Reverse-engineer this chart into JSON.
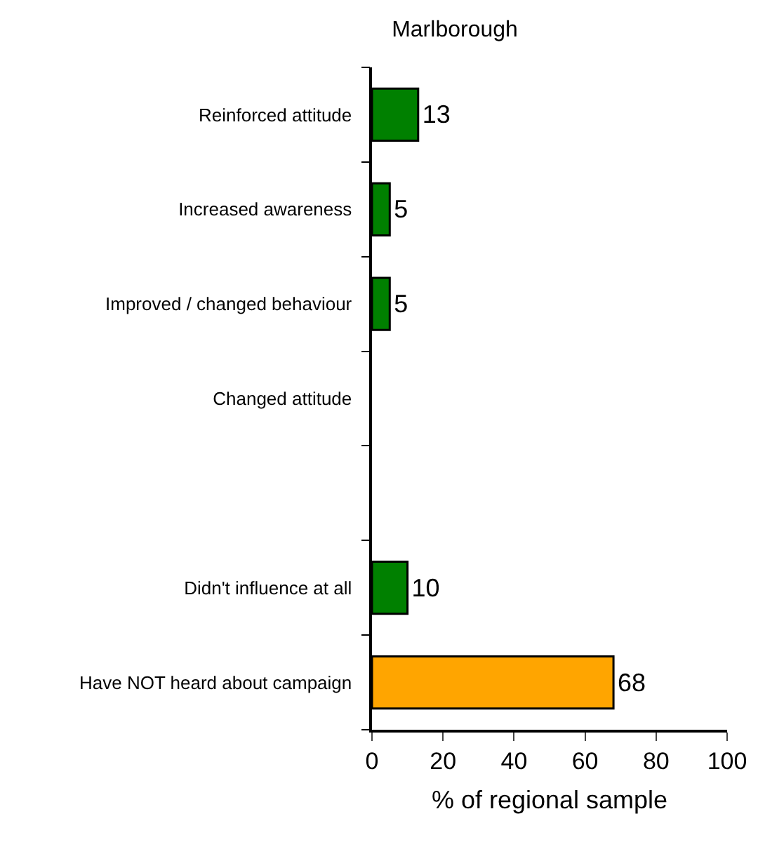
{
  "chart_data": {
    "type": "bar",
    "orientation": "horizontal",
    "title": "Marlborough",
    "xlabel": "% of regional sample",
    "categories": [
      "Reinforced attitude",
      "Increased awareness",
      "Improved / changed behaviour",
      "Changed attitude",
      null,
      "Didn't influence at all",
      "Have NOT heard about campaign"
    ],
    "values": [
      13,
      5,
      5,
      null,
      null,
      10,
      68
    ],
    "colors": [
      "#008000",
      "#008000",
      "#008000",
      "#008000",
      "#008000",
      "#008000",
      "#ffa500"
    ],
    "xlim": [
      0,
      100
    ],
    "xticks": [
      0,
      20,
      40,
      60,
      80,
      100
    ],
    "grid": false,
    "data_labels": true
  }
}
